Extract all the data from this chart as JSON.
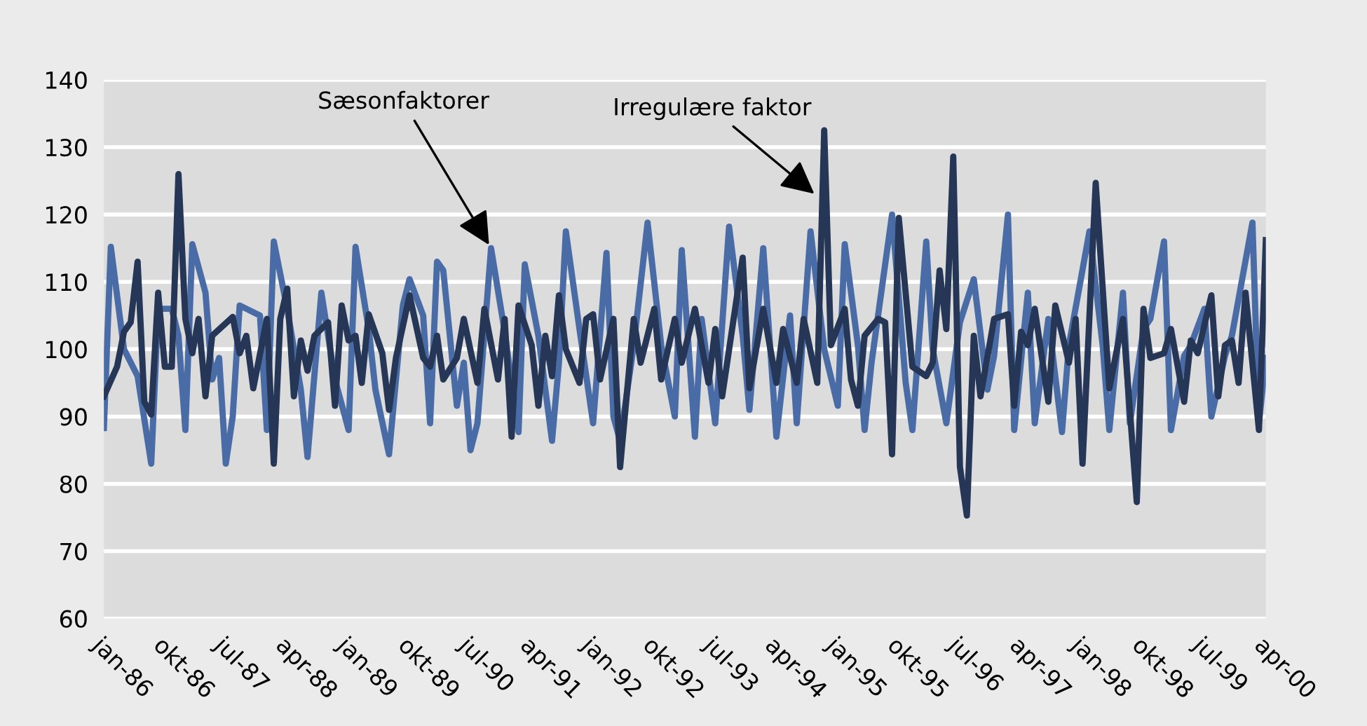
{
  "chart_data": {
    "type": "line",
    "ylim": [
      60,
      140
    ],
    "yticks": [
      60,
      70,
      80,
      90,
      100,
      110,
      120,
      130,
      140
    ],
    "grid": "y",
    "xlim": [
      "1986-01",
      "2000-04"
    ],
    "xticks": [
      {
        "value": "1986-01",
        "label": "jan-86"
      },
      {
        "value": "1986-10",
        "label": "okt-86"
      },
      {
        "value": "1987-07",
        "label": "jul-87"
      },
      {
        "value": "1988-04",
        "label": "apr-88"
      },
      {
        "value": "1989-01",
        "label": "jan-89"
      },
      {
        "value": "1989-10",
        "label": "okt-89"
      },
      {
        "value": "1990-07",
        "label": "jul-90"
      },
      {
        "value": "1991-04",
        "label": "apr-91"
      },
      {
        "value": "1992-01",
        "label": "jan-92"
      },
      {
        "value": "1992-10",
        "label": "okt-92"
      },
      {
        "value": "1993-07",
        "label": "jul-93"
      },
      {
        "value": "1994-04",
        "label": "apr-94"
      },
      {
        "value": "1995-01",
        "label": "jan-95"
      },
      {
        "value": "1995-10",
        "label": "okt-95"
      },
      {
        "value": "1996-07",
        "label": "jul-96"
      },
      {
        "value": "1997-04",
        "label": "apr-97"
      },
      {
        "value": "1998-01",
        "label": "jan-98"
      },
      {
        "value": "1998-10",
        "label": "okt-98"
      },
      {
        "value": "1999-07",
        "label": "jul-99"
      },
      {
        "value": "2000-04",
        "label": "apr-00"
      }
    ],
    "annotations": [
      {
        "text": "Sæsonfaktorer",
        "x": "1990-10",
        "y": 115
      },
      {
        "text": "Irregulære faktor",
        "x": "1994-10",
        "y": 122.7
      }
    ],
    "series": [
      {
        "color": "#4a6ca6",
        "x": [
          "1986-01",
          "1986-02",
          "1986-04",
          "1986-06",
          "1986-08",
          "1986-09",
          "1986-11",
          "1986-12",
          "1987-01",
          "1987-02",
          "1987-04",
          "1987-05",
          "1987-06",
          "1987-07",
          "1987-08",
          "1987-09",
          "1987-12",
          "1988-01",
          "1988-02",
          "1988-04",
          "1988-06",
          "1988-07",
          "1988-09",
          "1988-11",
          "1989-01",
          "1989-02",
          "1989-04",
          "1989-05",
          "1989-07",
          "1989-09",
          "1989-10",
          "1989-12",
          "1990-01",
          "1990-02",
          "1990-03",
          "1990-05",
          "1990-06",
          "1990-07",
          "1990-08",
          "1990-10",
          "1990-12",
          "1991-02",
          "1991-03",
          "1991-05",
          "1991-07",
          "1991-08",
          "1991-09",
          "1991-11",
          "1992-01",
          "1992-03",
          "1992-04",
          "1992-05",
          "1992-07",
          "1992-09",
          "1992-11",
          "1993-01",
          "1993-02",
          "1993-04",
          "1993-05",
          "1993-07",
          "1993-09",
          "1993-11",
          "1993-12",
          "1994-02",
          "1994-04",
          "1994-06",
          "1994-07",
          "1994-09",
          "1994-11",
          "1995-01",
          "1995-02",
          "1995-04",
          "1995-05",
          "1995-06",
          "1995-09",
          "1995-11",
          "1995-12",
          "1996-02",
          "1996-03",
          "1996-05",
          "1996-07",
          "1996-09",
          "1996-11",
          "1996-12",
          "1997-02",
          "1997-03",
          "1997-05",
          "1997-06",
          "1997-08",
          "1997-10",
          "1997-11",
          "1998-02",
          "1998-04",
          "1998-05",
          "1998-07",
          "1998-08",
          "1998-10",
          "1998-11",
          "1999-01",
          "1999-02",
          "1999-04",
          "1999-05",
          "1999-07",
          "1999-08",
          "1999-10",
          "1999-11",
          "2000-02",
          "2000-03",
          "2000-04"
        ],
        "values": [
          88.3,
          115.2,
          100,
          96,
          83,
          106,
          106,
          102,
          88,
          115.6,
          108.4,
          95.5,
          98.7,
          83,
          90,
          106.5,
          105,
          88,
          116,
          106,
          94,
          84,
          108.4,
          95.5,
          88,
          115.2,
          103,
          94,
          84.4,
          106.5,
          110.4,
          105,
          89,
          113,
          111.7,
          91.6,
          98,
          85,
          89,
          115,
          102.6,
          87.7,
          112.6,
          102,
          86.4,
          98,
          117.5,
          103,
          89,
          114.3,
          90,
          86.4,
          100.6,
          118.8,
          100.6,
          90,
          114.7,
          87,
          104.5,
          89,
          118.2,
          102,
          91,
          115,
          87,
          105,
          89,
          117.5,
          100,
          91.6,
          115.6,
          100.6,
          88,
          98,
          120,
          95,
          88,
          116,
          100,
          89,
          104,
          110.4,
          94,
          99,
          120,
          88,
          108.4,
          89,
          104.5,
          87.7,
          100.6,
          117.5,
          100.6,
          88,
          108.4,
          89,
          103,
          104.5,
          116,
          88,
          99,
          100.6,
          106,
          90,
          99,
          102,
          118.8,
          89,
          98.7
        ]
      },
      {
        "color": "#253656",
        "x": [
          "1986-01",
          "1986-03",
          "1986-04",
          "1986-05",
          "1986-06",
          "1986-07",
          "1986-08",
          "1986-09",
          "1986-10",
          "1986-11",
          "1986-12",
          "1987-01",
          "1987-02",
          "1987-03",
          "1987-04",
          "1987-05",
          "1987-08",
          "1987-09",
          "1987-10",
          "1987-11",
          "1988-01",
          "1988-02",
          "1988-03",
          "1988-04",
          "1988-05",
          "1988-06",
          "1988-07",
          "1988-08",
          "1988-10",
          "1988-11",
          "1988-12",
          "1989-01",
          "1989-02",
          "1989-03",
          "1989-04",
          "1989-06",
          "1989-07",
          "1989-08",
          "1989-10",
          "1989-12",
          "1990-01",
          "1990-02",
          "1990-03",
          "1990-05",
          "1990-06",
          "1990-08",
          "1990-09",
          "1990-11",
          "1990-12",
          "1991-01",
          "1991-02",
          "1991-04",
          "1991-05",
          "1991-06",
          "1991-07",
          "1991-08",
          "1991-09",
          "1991-11",
          "1991-12",
          "1992-01",
          "1992-02",
          "1992-04",
          "1992-05",
          "1992-07",
          "1992-08",
          "1992-10",
          "1992-11",
          "1993-01",
          "1993-02",
          "1993-04",
          "1993-06",
          "1993-07",
          "1993-08",
          "1993-11",
          "1993-12",
          "1994-02",
          "1994-04",
          "1994-05",
          "1994-07",
          "1994-08",
          "1994-10",
          "1994-11",
          "1994-12",
          "1995-02",
          "1995-03",
          "1995-04",
          "1995-05",
          "1995-07",
          "1995-08",
          "1995-09",
          "1995-10",
          "1995-12",
          "1996-02",
          "1996-03",
          "1996-04",
          "1996-05",
          "1996-06",
          "1996-07",
          "1996-08",
          "1996-09",
          "1996-10",
          "1996-12",
          "1997-02",
          "1997-03",
          "1997-04",
          "1997-05",
          "1997-06",
          "1997-08",
          "1997-09",
          "1997-11",
          "1997-12",
          "1998-01",
          "1998-03",
          "1998-05",
          "1998-07",
          "1998-09",
          "1998-10",
          "1998-11",
          "1999-01",
          "1999-02",
          "1999-04",
          "1999-05",
          "1999-06",
          "1999-08",
          "1999-09",
          "1999-10",
          "1999-11",
          "1999-12",
          "2000-01",
          "2000-03",
          "2000-04"
        ],
        "values": [
          93,
          97.4,
          102.6,
          104,
          113,
          92.2,
          90.3,
          108.4,
          97.4,
          97.4,
          126,
          104.5,
          99.4,
          104.5,
          93,
          102,
          104.8,
          99.4,
          102,
          94.2,
          104.5,
          83,
          104.5,
          109,
          93,
          101.3,
          96.8,
          102,
          104,
          91.6,
          106.5,
          101.3,
          102,
          95,
          105.2,
          99.4,
          91,
          98.7,
          108,
          98.7,
          97.4,
          102,
          95.5,
          98.7,
          104.5,
          95,
          106,
          95.5,
          104.5,
          87,
          106.5,
          100.6,
          91.6,
          102,
          96,
          108,
          100,
          95,
          104.5,
          105.2,
          95.5,
          104.5,
          82.5,
          104.5,
          98,
          106,
          95.5,
          104.5,
          98,
          106,
          95,
          103,
          93,
          113.6,
          94.2,
          106,
          95,
          103,
          95,
          104.5,
          95,
          132.5,
          100.6,
          106,
          95.5,
          91.6,
          102,
          104.5,
          104,
          84.4,
          119.5,
          97.4,
          96,
          98,
          111.7,
          103,
          128.6,
          82.5,
          75.3,
          102,
          93,
          104.5,
          105.2,
          91.6,
          102.6,
          100.6,
          106,
          92.2,
          106.5,
          98,
          104.5,
          83,
          124.7,
          94.2,
          104.5,
          77.3,
          106,
          98.7,
          99.4,
          103,
          92.2,
          101.3,
          99.4,
          108,
          93,
          100.6,
          101.3,
          95,
          108.4,
          88,
          116.2
        ]
      }
    ]
  }
}
